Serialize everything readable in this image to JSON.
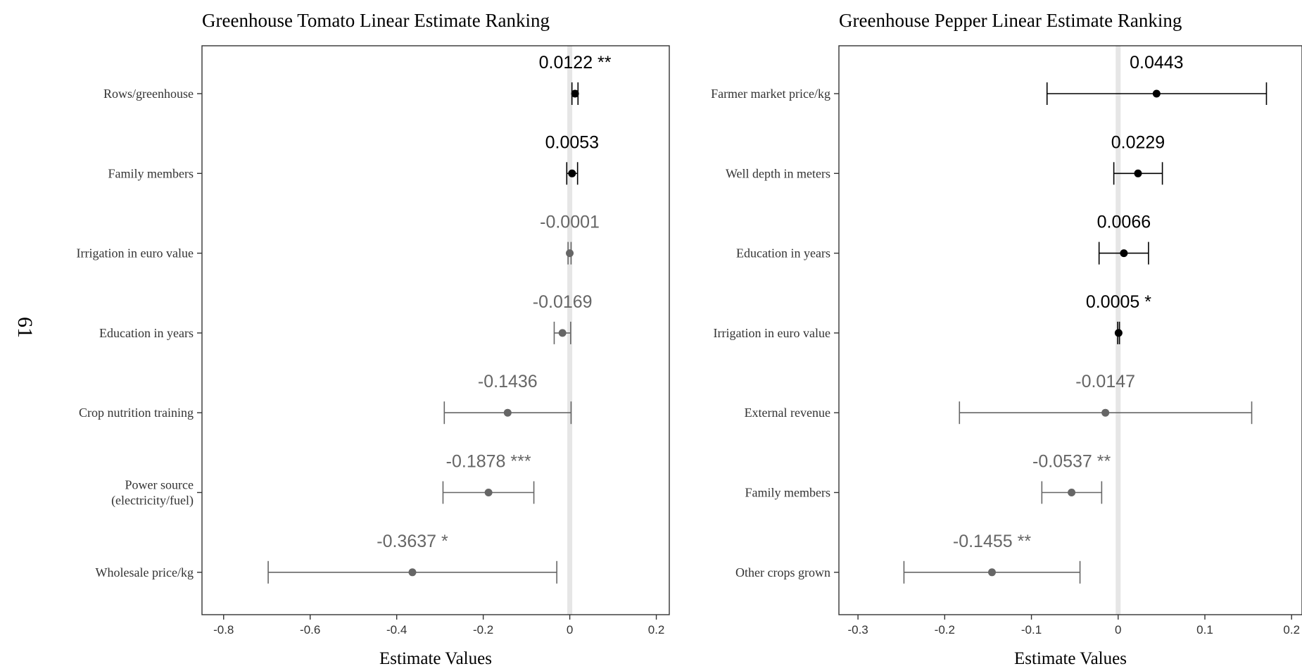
{
  "page_number": "61",
  "chart_data": [
    {
      "type": "forest",
      "title": "Greenhouse Tomato Linear Estimate Ranking",
      "xlabel": "Estimate Values",
      "xlim": [
        -0.85,
        0.23
      ],
      "xticks": [
        -0.8,
        -0.6,
        -0.4,
        -0.2,
        0,
        0.2
      ],
      "xtick_labels": [
        "-0.8",
        "-0.6",
        "-0.4",
        "-0.2",
        "0",
        "0.2"
      ],
      "zero_line": true,
      "grid": false,
      "colors": {
        "positive": "#000000",
        "negative": "#666666",
        "zero_line": "#e6e6e6"
      },
      "rows": [
        {
          "label": [
            "Rows/greenhouse"
          ],
          "estimate": 0.0122,
          "lower": 0.005,
          "upper": 0.019,
          "text": "0.0122 **",
          "sign": "positive"
        },
        {
          "label": [
            "Family members"
          ],
          "estimate": 0.0053,
          "lower": -0.007,
          "upper": 0.018,
          "text": "0.0053",
          "sign": "positive"
        },
        {
          "label": [
            "Irrigation in euro value"
          ],
          "estimate": -0.0001,
          "lower": -0.004,
          "upper": 0.003,
          "text": "-0.0001",
          "sign": "negative"
        },
        {
          "label": [
            "Education in years"
          ],
          "estimate": -0.0169,
          "lower": -0.036,
          "upper": 0.002,
          "text": "-0.0169",
          "sign": "negative"
        },
        {
          "label": [
            "Crop nutrition training"
          ],
          "estimate": -0.1436,
          "lower": -0.29,
          "upper": 0.003,
          "text": "-0.1436",
          "sign": "negative"
        },
        {
          "label": [
            "Power source",
            "(electricity/fuel)"
          ],
          "estimate": -0.1878,
          "lower": -0.293,
          "upper": -0.083,
          "text": "-0.1878 ***",
          "sign": "negative"
        },
        {
          "label": [
            "Wholesale price/kg"
          ],
          "estimate": -0.3637,
          "lower": -0.697,
          "upper": -0.03,
          "text": "-0.3637 *",
          "sign": "negative"
        }
      ]
    },
    {
      "type": "forest",
      "title": "Greenhouse Pepper Linear Estimate Ranking",
      "xlabel": "Estimate Values",
      "xlim": [
        -0.322,
        0.212
      ],
      "xticks": [
        -0.3,
        -0.2,
        -0.1,
        0,
        0.1,
        0.2
      ],
      "xtick_labels": [
        "-0.3",
        "-0.2",
        "-0.1",
        "0",
        "0.1",
        "0.2"
      ],
      "zero_line": true,
      "grid": false,
      "colors": {
        "positive": "#000000",
        "negative": "#666666",
        "zero_line": "#e6e6e6"
      },
      "rows": [
        {
          "label": [
            "Farmer market price/kg"
          ],
          "estimate": 0.0443,
          "lower": -0.082,
          "upper": 0.171,
          "text": "0.0443",
          "sign": "positive"
        },
        {
          "label": [
            "Well depth in meters"
          ],
          "estimate": 0.0229,
          "lower": -0.005,
          "upper": 0.051,
          "text": "0.0229",
          "sign": "positive"
        },
        {
          "label": [
            "Education in years"
          ],
          "estimate": 0.0066,
          "lower": -0.022,
          "upper": 0.035,
          "text": "0.0066",
          "sign": "positive"
        },
        {
          "label": [
            "Irrigation in euro value"
          ],
          "estimate": 0.0005,
          "lower": -0.0005,
          "upper": 0.0015,
          "text": "0.0005 *",
          "sign": "positive"
        },
        {
          "label": [
            "External revenue"
          ],
          "estimate": -0.0147,
          "lower": -0.183,
          "upper": 0.154,
          "text": "-0.0147",
          "sign": "negative"
        },
        {
          "label": [
            "Family members"
          ],
          "estimate": -0.0537,
          "lower": -0.088,
          "upper": -0.019,
          "text": "-0.0537 **",
          "sign": "negative"
        },
        {
          "label": [
            "Other crops grown"
          ],
          "estimate": -0.1455,
          "lower": -0.247,
          "upper": -0.044,
          "text": "-0.1455 **",
          "sign": "negative"
        }
      ]
    }
  ]
}
